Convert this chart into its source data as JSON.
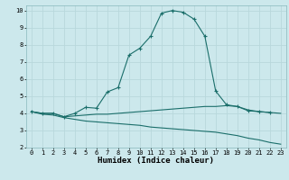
{
  "xlabel": "Humidex (Indice chaleur)",
  "bg_color": "#cce8ec",
  "grid_color": "#b8d8dc",
  "line_color": "#1a6e6a",
  "xlim": [
    -0.5,
    23.5
  ],
  "ylim": [
    2,
    10.3
  ],
  "xticks": [
    0,
    1,
    2,
    3,
    4,
    5,
    6,
    7,
    8,
    9,
    10,
    11,
    12,
    13,
    14,
    15,
    16,
    17,
    18,
    19,
    20,
    21,
    22,
    23
  ],
  "yticks": [
    2,
    3,
    4,
    5,
    6,
    7,
    8,
    9,
    10
  ],
  "curve1_x": [
    0,
    1,
    2,
    3,
    4,
    5,
    6,
    7,
    8,
    9,
    10,
    11,
    12,
    13,
    14,
    15,
    16,
    17,
    18,
    19,
    20,
    21,
    22
  ],
  "curve1_y": [
    4.1,
    4.0,
    4.0,
    3.8,
    4.0,
    4.35,
    4.3,
    5.25,
    5.5,
    7.4,
    7.8,
    8.5,
    9.85,
    10.0,
    9.9,
    9.5,
    8.5,
    5.3,
    4.5,
    4.4,
    4.15,
    4.1,
    4.05
  ],
  "curve2_x": [
    0,
    1,
    2,
    3,
    4,
    5,
    6,
    7,
    8,
    9,
    10,
    11,
    12,
    13,
    14,
    15,
    16,
    17,
    18,
    19,
    20,
    21,
    22,
    23
  ],
  "curve2_y": [
    4.1,
    4.0,
    4.0,
    3.8,
    3.85,
    3.9,
    3.95,
    3.95,
    4.0,
    4.05,
    4.1,
    4.15,
    4.2,
    4.25,
    4.3,
    4.35,
    4.4,
    4.4,
    4.45,
    4.4,
    4.2,
    4.1,
    4.05,
    4.0
  ],
  "curve3_x": [
    0,
    1,
    2,
    3,
    4,
    5,
    6,
    7,
    8,
    9,
    10,
    11,
    12,
    13,
    14,
    15,
    16,
    17,
    18,
    19,
    20,
    21,
    22,
    23
  ],
  "curve3_y": [
    4.1,
    3.95,
    3.9,
    3.75,
    3.65,
    3.55,
    3.5,
    3.45,
    3.4,
    3.35,
    3.3,
    3.2,
    3.15,
    3.1,
    3.05,
    3.0,
    2.95,
    2.9,
    2.8,
    2.7,
    2.55,
    2.45,
    2.3,
    2.2
  ],
  "tick_fontsize": 5.0,
  "xlabel_fontsize": 6.5
}
